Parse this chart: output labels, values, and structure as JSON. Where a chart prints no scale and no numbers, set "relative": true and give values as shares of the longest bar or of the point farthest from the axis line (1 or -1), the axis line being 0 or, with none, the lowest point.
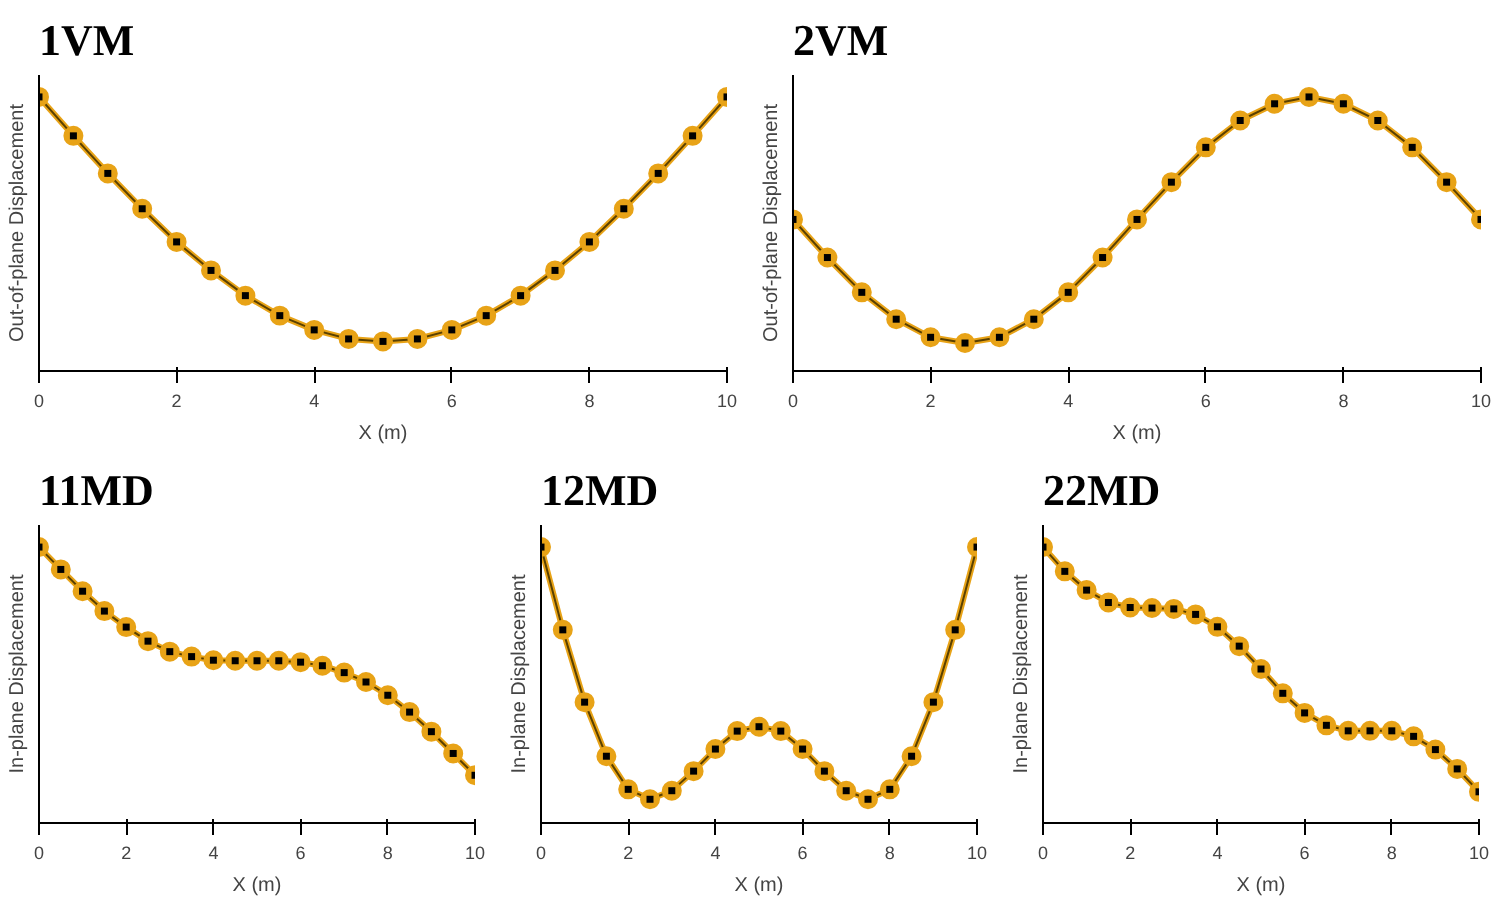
{
  "chart_data": [
    {
      "type": "line",
      "title": "1VM",
      "xlabel": "X (m)",
      "ylabel": "Out-of-plane Displacement",
      "relative": true,
      "x": [
        0,
        0.5,
        1,
        1.5,
        2,
        2.5,
        3,
        3.5,
        4,
        4.5,
        5,
        5.5,
        6,
        6.5,
        7,
        7.5,
        8,
        8.5,
        9,
        9.5,
        10
      ],
      "xlim": [
        0,
        10
      ],
      "xticks": [
        0,
        2,
        4,
        6,
        8,
        10
      ],
      "tick_labels": "x",
      "marker": "circle",
      "series": [
        {
          "color": "#e8a317",
          "values": [
            1,
            0.858,
            0.721,
            0.592,
            0.471,
            0.367,
            0.275,
            0.202,
            0.15,
            0.117,
            0.108,
            0.117,
            0.15,
            0.202,
            0.275,
            0.367,
            0.471,
            0.592,
            0.721,
            0.858,
            1
          ]
        }
      ]
    },
    {
      "type": "line",
      "title": "2VM",
      "xlabel": "X (m)",
      "ylabel": "Out-of-plane Displacement",
      "relative": true,
      "x": [
        0,
        0.5,
        1,
        1.5,
        2,
        2.5,
        3,
        3.5,
        4,
        4.5,
        5,
        5.5,
        6,
        6.5,
        7,
        7.5,
        8,
        8.5,
        9,
        9.5,
        10
      ],
      "xlim": [
        0,
        10
      ],
      "xticks": [
        0,
        2,
        4,
        6,
        8,
        10
      ],
      "tick_labels": "x",
      "marker": "circle",
      "series": [
        {
          "color": "#e8a317",
          "values": [
            0.553,
            0.414,
            0.287,
            0.189,
            0.123,
            0.102,
            0.123,
            0.189,
            0.287,
            0.414,
            0.553,
            0.689,
            0.816,
            0.914,
            0.975,
            1,
            0.975,
            0.914,
            0.816,
            0.689,
            0.553
          ]
        }
      ]
    },
    {
      "type": "line",
      "title": "11MD",
      "xlabel": "X (m)",
      "ylabel": "In-plane Displacement",
      "relative": true,
      "x": [
        0,
        0.5,
        1,
        1.5,
        2,
        2.5,
        3,
        3.5,
        4,
        4.5,
        5,
        5.5,
        6,
        6.5,
        7,
        7.5,
        8,
        8.5,
        9,
        9.5,
        10
      ],
      "xlim": [
        0,
        10
      ],
      "xticks": [
        0,
        2,
        4,
        6,
        8,
        10
      ],
      "tick_labels": "x",
      "marker": "circle",
      "series": [
        {
          "color": "#e8a317",
          "values": [
            1,
            0.919,
            0.84,
            0.768,
            0.71,
            0.659,
            0.621,
            0.603,
            0.59,
            0.588,
            0.588,
            0.588,
            0.583,
            0.57,
            0.545,
            0.511,
            0.463,
            0.402,
            0.331,
            0.252,
            0.173
          ]
        }
      ]
    },
    {
      "type": "line",
      "title": "12MD",
      "xlabel": "X (m)",
      "ylabel": "In-plane Displacement",
      "relative": true,
      "x": [
        0,
        0.5,
        1,
        1.5,
        2,
        2.5,
        3,
        3.5,
        4,
        4.5,
        5,
        5.5,
        6,
        6.5,
        7,
        7.5,
        8,
        8.5,
        9,
        9.5,
        10
      ],
      "xlim": [
        0,
        10
      ],
      "xticks": [
        0,
        2,
        4,
        6,
        8,
        10
      ],
      "tick_labels": "x",
      "marker": "circle",
      "series": [
        {
          "color": "#e8a317",
          "values": [
            1,
            0.7,
            0.438,
            0.242,
            0.122,
            0.086,
            0.117,
            0.188,
            0.268,
            0.333,
            0.349,
            0.333,
            0.268,
            0.188,
            0.117,
            0.086,
            0.122,
            0.242,
            0.438,
            0.7,
            1
          ]
        }
      ]
    },
    {
      "type": "line",
      "title": "22MD",
      "xlabel": "X (m)",
      "ylabel": "In-plane Displacement",
      "relative": true,
      "x": [
        0,
        0.5,
        1,
        1.5,
        2,
        2.5,
        3,
        3.5,
        4,
        4.5,
        5,
        5.5,
        6,
        6.5,
        7,
        7.5,
        8,
        8.5,
        9,
        9.5,
        10
      ],
      "xlim": [
        0,
        10
      ],
      "xticks": [
        0,
        2,
        4,
        6,
        8,
        10
      ],
      "tick_labels": "x",
      "marker": "circle",
      "series": [
        {
          "color": "#e8a317",
          "values": [
            1,
            0.912,
            0.844,
            0.799,
            0.781,
            0.779,
            0.776,
            0.756,
            0.711,
            0.641,
            0.558,
            0.47,
            0.399,
            0.354,
            0.334,
            0.334,
            0.334,
            0.314,
            0.266,
            0.196,
            0.113
          ]
        }
      ]
    }
  ]
}
